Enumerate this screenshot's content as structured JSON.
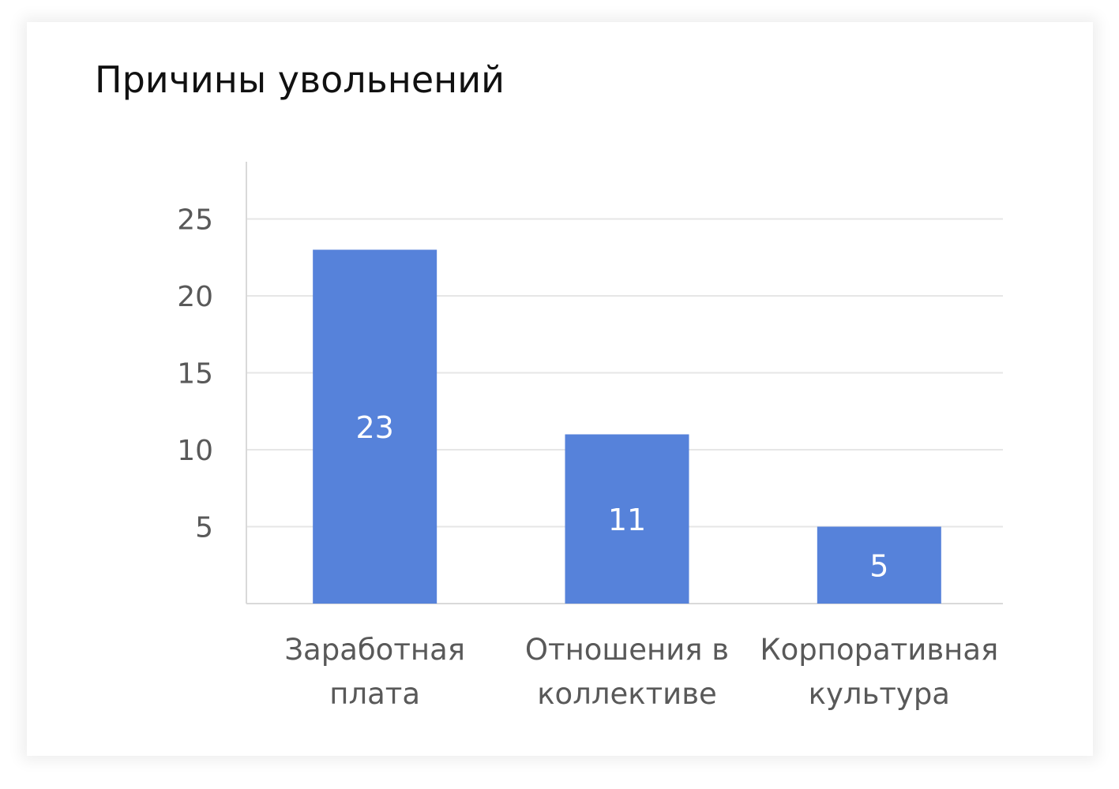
{
  "chart_data": {
    "type": "bar",
    "title": "Причины увольнений",
    "categories": [
      [
        "Заработная",
        "плата"
      ],
      [
        "Отношения в",
        "коллективе"
      ],
      [
        "Корпоративная",
        "культура"
      ]
    ],
    "values": [
      23,
      11,
      5
    ],
    "data_labels": [
      "23",
      "11",
      "5"
    ],
    "yticks": [
      "5",
      "10",
      "15",
      "20",
      "25"
    ],
    "ylim": [
      0,
      25
    ],
    "grid": true,
    "bar_color": "#5682DA",
    "xlabel": "",
    "ylabel": ""
  }
}
